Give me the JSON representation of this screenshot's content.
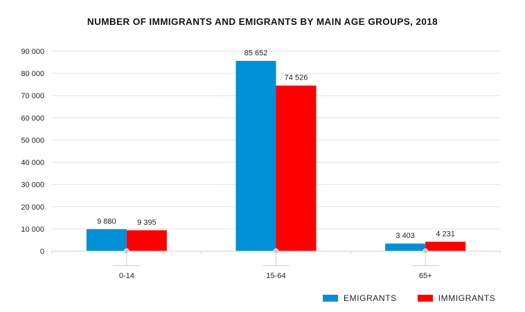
{
  "chart_data": {
    "type": "bar",
    "title": "NUMBER OF IMMIGRANTS AND EMIGRANTS BY MAIN AGE GROUPS, 2018",
    "categories": [
      "0-14",
      "15-64",
      "65+"
    ],
    "series": [
      {
        "name": "EMIGRANTS",
        "color": "#0090d8",
        "values": [
          9880,
          85652,
          3403
        ],
        "labels": [
          "9 880",
          "85 652",
          "3 403"
        ]
      },
      {
        "name": "IMMIGRANTS",
        "color": "#ff0000",
        "values": [
          9395,
          74526,
          4231
        ],
        "labels": [
          "9 395",
          "74 526",
          "4 231"
        ]
      }
    ],
    "ylim": [
      0,
      90000
    ],
    "yticks": [
      0,
      10000,
      20000,
      30000,
      40000,
      50000,
      60000,
      70000,
      80000,
      90000
    ],
    "ytick_labels": [
      "0",
      "10 000",
      "20 000",
      "30 000",
      "40 000",
      "50 000",
      "60 000",
      "70 000",
      "80 000",
      "90 000"
    ],
    "grid": true,
    "legend_position": "bottom-right"
  }
}
